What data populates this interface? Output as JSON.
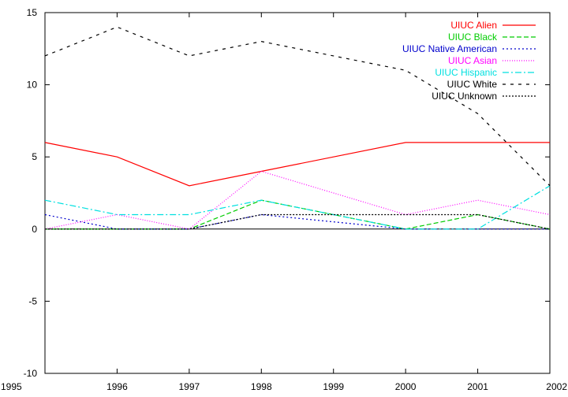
{
  "chart_data": {
    "type": "line",
    "title": "",
    "xlabel": "",
    "ylabel": "",
    "x": [
      1995,
      1996,
      1997,
      1998,
      1999,
      2000,
      2001,
      2002
    ],
    "xlim": [
      1995,
      2002
    ],
    "ylim": [
      -10,
      15
    ],
    "xticks": [
      "1995",
      "1996",
      "1997",
      "1998",
      "1999",
      "2000",
      "2001",
      "2002"
    ],
    "yticks": [
      "-10",
      "-5",
      "0",
      "5",
      "10",
      "15"
    ],
    "ytick_values": [
      -10,
      -5,
      0,
      5,
      10,
      15
    ],
    "grid": false,
    "legend_position": "top-right",
    "series": [
      {
        "name": "UIUC Alien",
        "color": "#ff0000",
        "dash": "solid",
        "values": [
          6,
          5,
          3,
          4,
          5,
          6,
          6,
          6
        ]
      },
      {
        "name": "UIUC Black",
        "color": "#00cc00",
        "dash": "dashed",
        "values": [
          0,
          0,
          0,
          2,
          1,
          0,
          1,
          0
        ]
      },
      {
        "name": "UIUC Native American",
        "color": "#0000cc",
        "dash": "dotted",
        "values": [
          1,
          0,
          0,
          1,
          0.5,
          0,
          0,
          0
        ]
      },
      {
        "name": "UIUC Asian",
        "color": "#ff00ff",
        "dash": "fine-dotted",
        "values": [
          0,
          1,
          0,
          4,
          2.5,
          1,
          2,
          1
        ]
      },
      {
        "name": "UIUC Hispanic",
        "color": "#00e0e0",
        "dash": "dash-dot",
        "values": [
          2,
          1,
          1,
          2,
          1,
          0,
          0,
          3
        ]
      },
      {
        "name": "UIUC White",
        "color": "#000000",
        "dash": "sparse-dashed",
        "values": [
          12,
          14,
          12,
          13,
          12,
          11,
          8,
          3
        ]
      },
      {
        "name": "UIUC Unknown",
        "color": "#000000",
        "dash": "dense-dotted",
        "values": [
          0,
          0,
          0,
          1,
          1,
          1,
          1,
          0
        ]
      }
    ]
  }
}
